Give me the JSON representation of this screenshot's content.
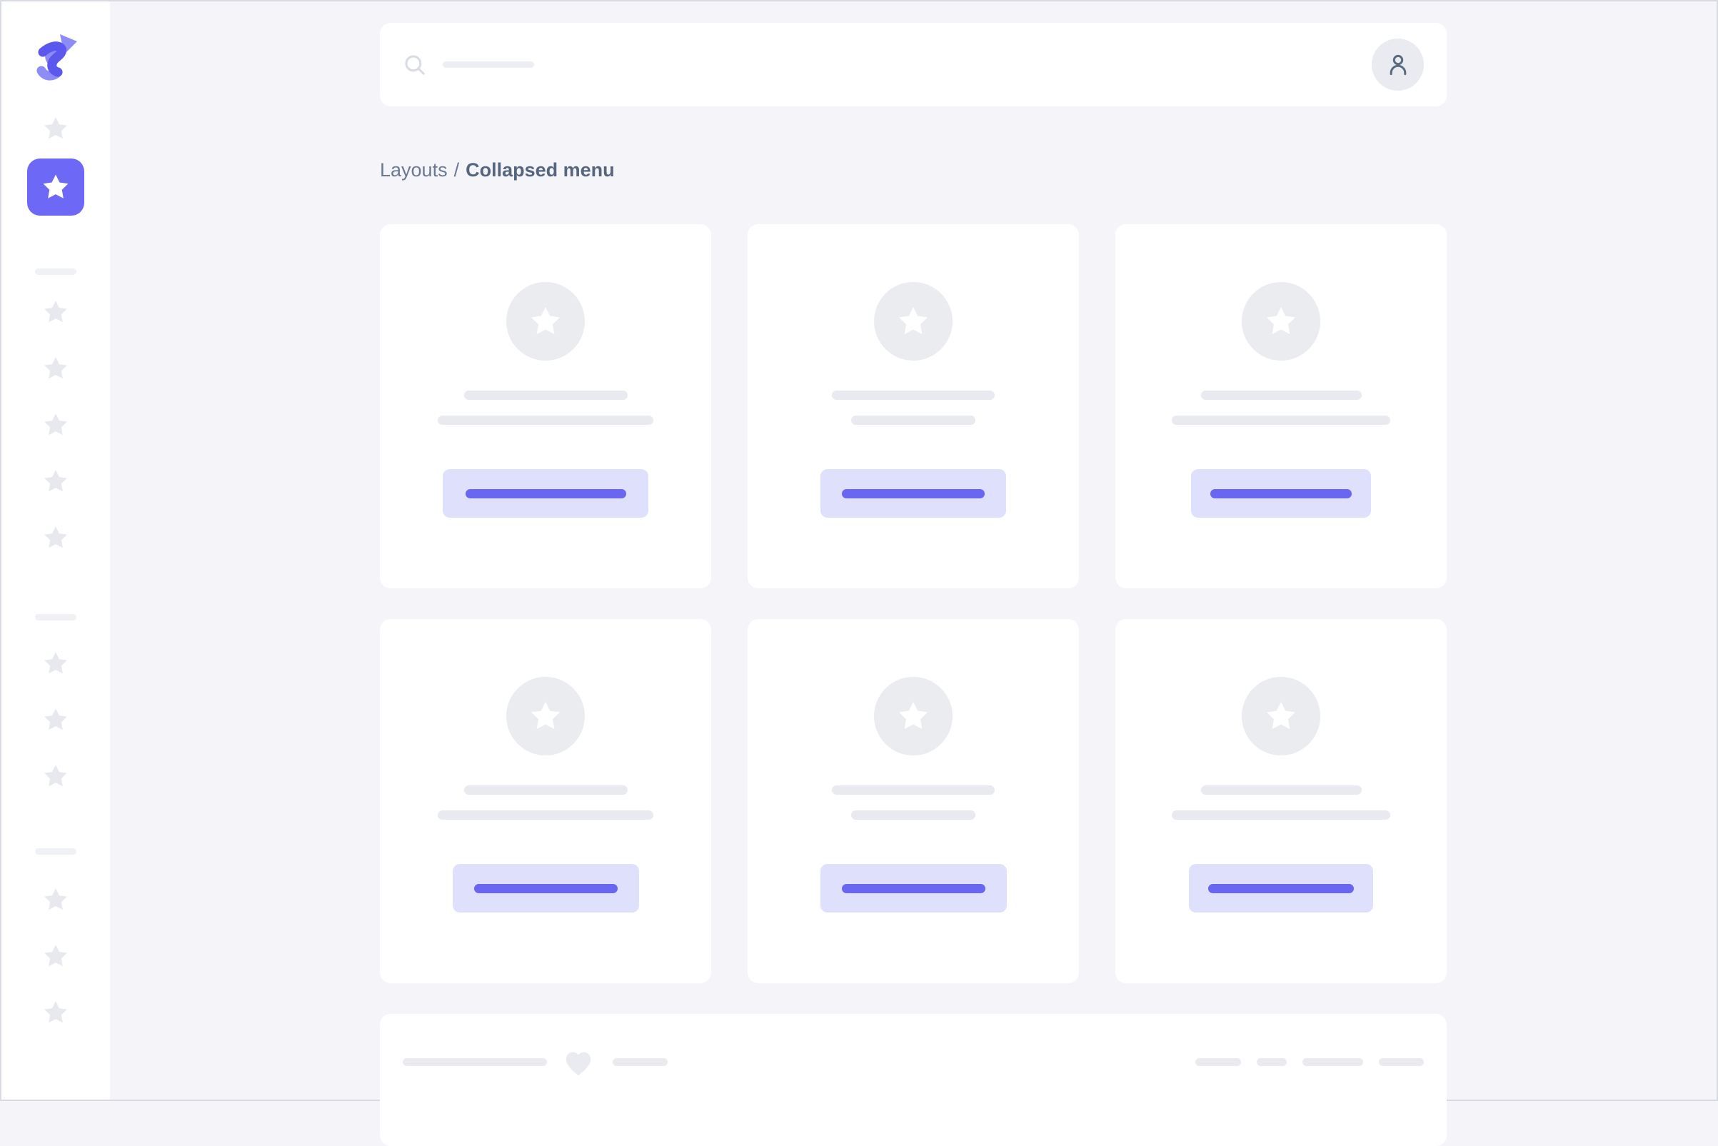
{
  "theme": {
    "background": "#f4f4f9",
    "surface": "#ffffff",
    "accent": "#6d68f6",
    "accent_dark": "#5a58ee",
    "accent_light": "#8d8cf7",
    "button_bg": "#dfe0fc",
    "button_bar": "#6b66f2",
    "skeleton": "#e9eaef",
    "text_muted": "#6b7a90",
    "text_strong": "#55667e"
  },
  "sidebar": {
    "logo_icon": "s-arrow-logo",
    "item_icon": "star",
    "active_index": 1,
    "groups": [
      2,
      5,
      3,
      3
    ]
  },
  "topbar": {
    "search_icon": "magnifier",
    "search_skeleton_width": 128,
    "user_icon": "person",
    "avatar_shape": "circle"
  },
  "breadcrumb": {
    "parent": "Layouts",
    "separator": "/",
    "current": "Collapsed menu"
  },
  "cards": [
    {
      "icon": "star",
      "line1": 229,
      "line2": 302,
      "button": 288,
      "bar": 225
    },
    {
      "icon": "star",
      "line1": 228,
      "line2": 174,
      "button": 260,
      "bar": 200
    },
    {
      "icon": "star",
      "line1": 225,
      "line2": 306,
      "button": 252,
      "bar": 198
    },
    {
      "icon": "star",
      "line1": 229,
      "line2": 302,
      "button": 261,
      "bar": 201
    },
    {
      "icon": "star",
      "line1": 228,
      "line2": 174,
      "button": 261,
      "bar": 201
    },
    {
      "icon": "star",
      "line1": 225,
      "line2": 306,
      "button": 258,
      "bar": 204
    }
  ],
  "footer": {
    "heart_icon": "heart",
    "left_line": 202,
    "small_line": 77,
    "dashes": [
      64,
      42,
      85,
      63
    ]
  }
}
